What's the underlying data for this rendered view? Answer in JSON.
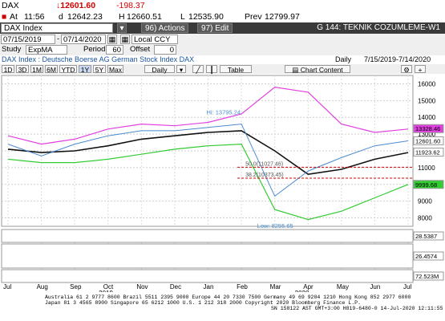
{
  "quote": {
    "symbol": "DAX",
    "last": "↓12601.60",
    "change": "-198.37",
    "at_label": "At",
    "time": "11:56",
    "open_label": "d",
    "open": "12642.23",
    "high_label": "H",
    "high": "12660.51",
    "low_label": "L",
    "low": "12535.90",
    "prev_label": "Prev",
    "prev": "12799.97"
  },
  "toolbar": {
    "security": "DAX Index",
    "actions": "96) Actions",
    "edit": "97) Edit",
    "title": "G 144: TEKNIK COZUMLEME-W1"
  },
  "dates": {
    "start": "07/15/2019",
    "end": "07/14/2020",
    "ccy": "Local CCY"
  },
  "study": {
    "label": "Study",
    "value": "ExpMA",
    "period_label": "Period",
    "period": "60",
    "offset_label": "Offset",
    "offset": "0"
  },
  "desc": {
    "text": "DAX Index : Deutsche Boerse AG German Stock Index DAX",
    "freq": "Daily",
    "range": "7/15/2019-7/14/2020"
  },
  "range_buttons": [
    "1D",
    "3D",
    "1M",
    "6M",
    "YTD",
    "1Y",
    "5Y",
    "Max"
  ],
  "range_selected": "1Y",
  "period_select": "Daily",
  "table_label": "Table",
  "chart_content_label": "Chart Content",
  "colors": {
    "price": "#1a1a1a",
    "ema": "#111111",
    "upper_band": "#e040e0",
    "lower_band": "#33cc33",
    "hi_label": "#4a90d0",
    "fib": "#cc0000"
  },
  "chart_data": {
    "type": "line",
    "ylim": [
      7500,
      16500
    ],
    "yticks": [
      "16000",
      "15000",
      "14000",
      "13000",
      "12000",
      "11000",
      "10000",
      "9000",
      "8000"
    ],
    "xticks": [
      "Jul",
      "Aug",
      "Sep",
      "Oct",
      "Nov",
      "Dec",
      "Jan",
      "Feb",
      "Mar",
      "Apr",
      "May",
      "Jun",
      "Jul"
    ],
    "year_labels": [
      "2019",
      "2020"
    ],
    "hi_label": "Hi: 13795.24",
    "low_label": "Low: 8255.65",
    "fib1": "50.0(11027.46)",
    "fib2": "38.2(10373.45)",
    "price_badges": [
      {
        "value": "13328.46",
        "color": "#e040e0"
      },
      {
        "value": "12601.60",
        "color": "#ffffff"
      },
      {
        "value": "11923.62",
        "color": "#ffffff"
      },
      {
        "value": "9999.68",
        "color": "#33cc33"
      }
    ],
    "price": {
      "x": [
        0,
        1,
        2,
        3,
        4,
        5,
        6,
        7,
        8,
        9,
        10,
        11,
        12
      ],
      "values": [
        12400,
        11700,
        12400,
        12900,
        13200,
        13200,
        13400,
        13600,
        9300,
        10800,
        11600,
        12300,
        12600
      ]
    },
    "ema": {
      "values": [
        12100,
        11900,
        12000,
        12300,
        12700,
        12900,
        13100,
        13200,
        12000,
        10600,
        10900,
        11500,
        11900
      ]
    },
    "upper": {
      "values": [
        12900,
        12400,
        12700,
        13300,
        13600,
        13500,
        13700,
        14200,
        15800,
        15500,
        13600,
        13100,
        13300
      ]
    },
    "lower": {
      "values": [
        11500,
        11300,
        11300,
        11500,
        11800,
        12100,
        12300,
        12400,
        8500,
        7900,
        8400,
        9200,
        10000
      ]
    },
    "sub1_badge": "28.5387",
    "sub2_badge": "26.4574",
    "volume_badge": "72.523M"
  },
  "footer": {
    "line1": "Australia 61 2 9777 8600 Brazil 5511 2395 9000 Europe 44 20 7330 7500 Germany 49 69 9204 1210 Hong Kong 852 2977 6000",
    "line2": "Japan 81 3 4565 8900        Singapore 65 6212 1000        U.S. 1 212 318 2000        Copyright 2020 Bloomberg Finance L.P.",
    "line3": "SN 158122 AST  GMT+3:00 H819-6480-0 14-Jul-2020 12:11:55"
  }
}
